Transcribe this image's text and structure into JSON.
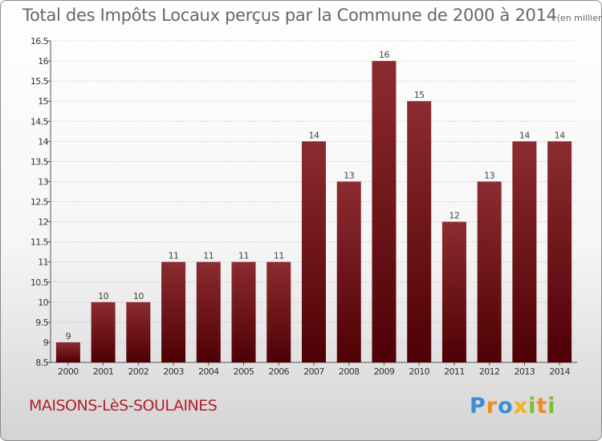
{
  "chart_data": {
    "type": "bar",
    "title": "Total des Impôts Locaux perçus par la Commune de 2000 à 2014",
    "unit": "(en milliers d'€)",
    "categories": [
      "2000",
      "2001",
      "2002",
      "2003",
      "2004",
      "2005",
      "2006",
      "2007",
      "2008",
      "2009",
      "2010",
      "2011",
      "2012",
      "2013",
      "2014"
    ],
    "values": [
      9,
      10,
      10,
      11,
      11,
      11,
      11,
      14,
      13,
      16,
      15,
      12,
      13,
      14,
      14
    ],
    "value_labels": [
      "9",
      "10",
      "10",
      "11",
      "11",
      "11",
      "11",
      "14",
      "13",
      "16",
      "15",
      "12",
      "13",
      "14",
      "14"
    ],
    "ylim": [
      8.5,
      16.5
    ],
    "yticks": [
      8.5,
      9,
      9.5,
      10,
      10.5,
      11,
      11.5,
      12,
      12.5,
      13,
      13.5,
      14,
      14.5,
      15,
      15.5,
      16,
      16.5
    ],
    "ytick_labels": [
      "8.5",
      "9",
      "9.5",
      "10",
      "10.5",
      "11",
      "11.5",
      "12",
      "12.5",
      "13",
      "13.5",
      "14",
      "14.5",
      "15",
      "15.5",
      "16",
      "16.5"
    ],
    "grid": "horizontal-dotted",
    "bar_color_top": "#8c2c30",
    "bar_color_bottom": "#4e0004"
  },
  "footer": {
    "commune": "MAISONS-LèS-SOULAINES",
    "logo_letters": [
      {
        "ch": "P",
        "color": "#3a8fd6"
      },
      {
        "ch": "r",
        "color": "#f28c1e"
      },
      {
        "ch": "o",
        "color": "#3a8fd6"
      },
      {
        "ch": "x",
        "color": "#f2b31e"
      },
      {
        "ch": "i",
        "color": "#7bbf2a"
      },
      {
        "ch": "t",
        "color": "#f28c1e"
      },
      {
        "ch": "i",
        "color": "#7bbf2a"
      }
    ]
  }
}
